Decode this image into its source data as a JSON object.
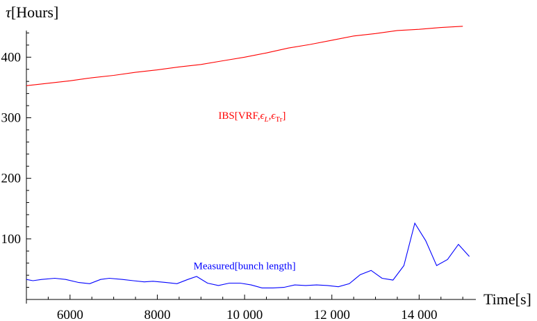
{
  "chart_data": {
    "type": "line",
    "xlabel": "Time[s]",
    "ylabel_symbol": "τ",
    "ylabel_text": "[Hours]",
    "xlim": [
      5000,
      15300
    ],
    "ylim": [
      0,
      460
    ],
    "x_axis_at_y": 0,
    "y_axis_at_x": 5000,
    "xticks": [
      {
        "value": 6000,
        "label": "6000"
      },
      {
        "value": 8000,
        "label": "8000"
      },
      {
        "value": 10000,
        "label": "10 000"
      },
      {
        "value": 12000,
        "label": "12 000"
      },
      {
        "value": 14000,
        "label": "14 000"
      }
    ],
    "yticks": [
      {
        "value": 100,
        "label": "100"
      },
      {
        "value": 200,
        "label": "200"
      },
      {
        "value": 300,
        "label": "300"
      },
      {
        "value": 400,
        "label": "400"
      }
    ],
    "grid": false,
    "series": [
      {
        "color": "#ff0000",
        "x": [
          5000,
          5500,
          6000,
          6500,
          7000,
          7500,
          8000,
          8500,
          9000,
          9500,
          10000,
          10500,
          11000,
          11500,
          12000,
          12500,
          13000,
          13500,
          14000,
          14500,
          15000
        ],
        "y": [
          353,
          357,
          361,
          366,
          370,
          375,
          379,
          384,
          388,
          394,
          400,
          407,
          415,
          421,
          428,
          435,
          439,
          444,
          446,
          449,
          451
        ]
      },
      {
        "color": "#0000ff",
        "x": [
          5000,
          5150,
          5350,
          5650,
          5900,
          6200,
          6450,
          6700,
          6900,
          7200,
          7450,
          7700,
          7900,
          8200,
          8450,
          8700,
          8900,
          9150,
          9400,
          9650,
          9900,
          10150,
          10400,
          10650,
          10900,
          11150,
          11400,
          11650,
          11900,
          12150,
          12400,
          12650,
          12900,
          13150,
          13400,
          13650,
          13900,
          14150,
          14400,
          14650,
          14900,
          15150
        ],
        "y": [
          33,
          31,
          33,
          35,
          33,
          28,
          26,
          33,
          35,
          33,
          31,
          29,
          30,
          28,
          26,
          33,
          38,
          27,
          23,
          27,
          27,
          24,
          19,
          19,
          20,
          24,
          23,
          24,
          23,
          21,
          26,
          41,
          48,
          35,
          32,
          56,
          126,
          97,
          56,
          66,
          91,
          71
        ]
      }
    ],
    "annotations": [
      {
        "color": "#ff0000",
        "prefix": "IBS[VRF,",
        "eps": "ϵ",
        "sub1": "L",
        "comma": ",",
        "sub2": "Tr",
        "suffix": "]",
        "x": 9400,
        "y": 298
      },
      {
        "color": "#0000ff",
        "text": "Measured[bunch length]",
        "x": 10000,
        "y": 50
      }
    ]
  }
}
